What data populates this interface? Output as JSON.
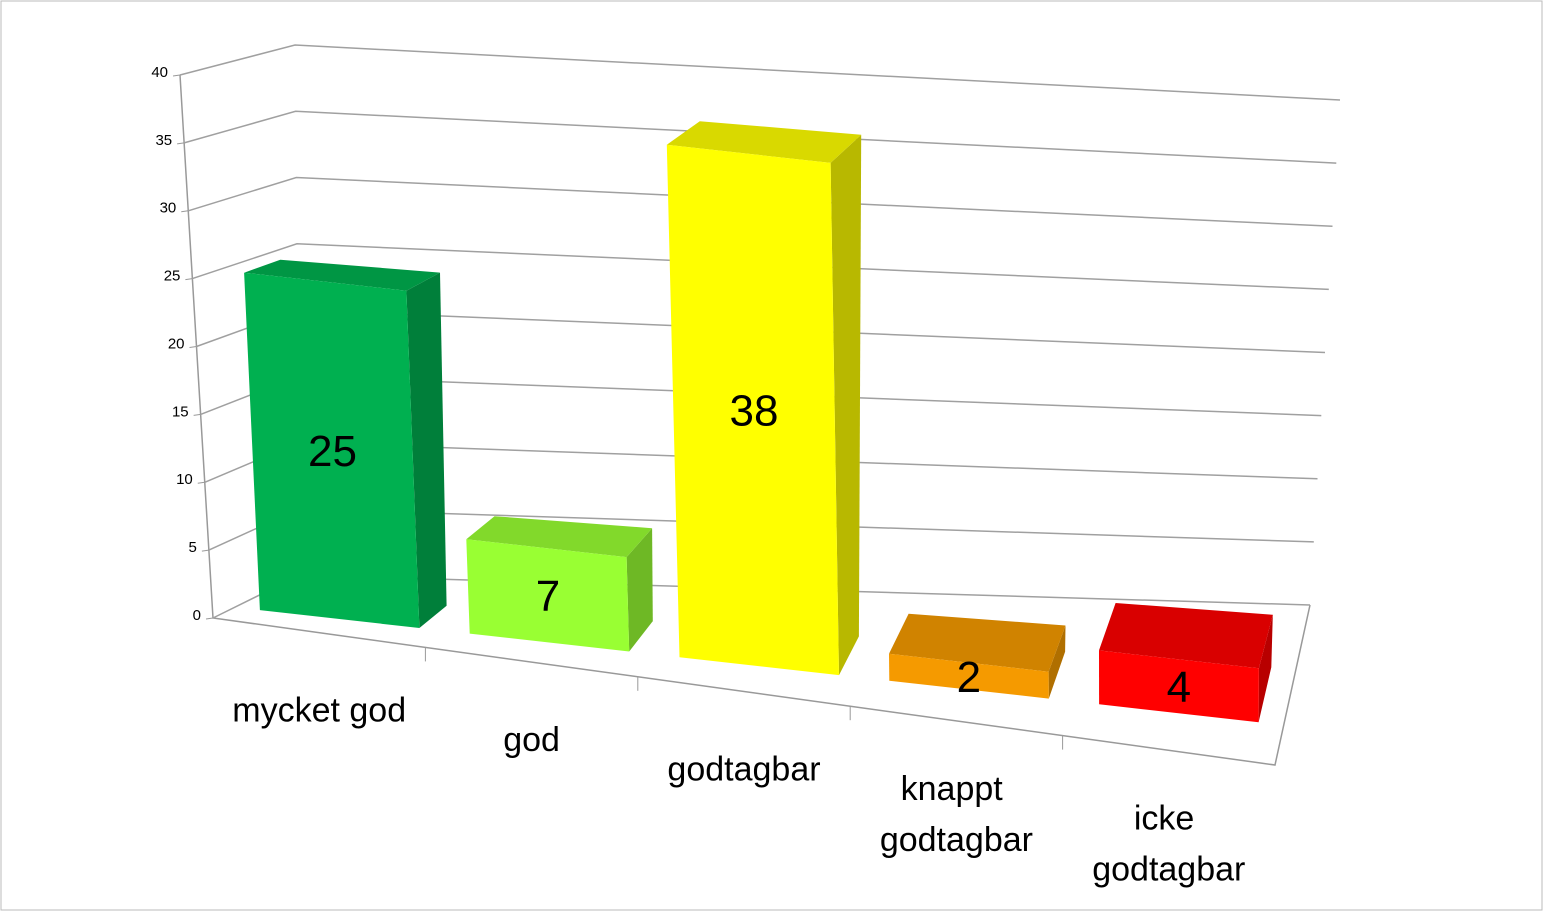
{
  "chart_data": {
    "type": "bar3d",
    "categories": [
      "mycket god",
      "god",
      "godtagbar",
      "knappt godtagbar",
      "icke godtagbar"
    ],
    "values": [
      25,
      7,
      38,
      2,
      4
    ],
    "colors": [
      "#00b050",
      "#99ff33",
      "#ffff00",
      "#f59a00",
      "#ff0000"
    ],
    "ylim": [
      0,
      40
    ],
    "yticks": [
      0,
      5,
      10,
      15,
      20,
      25,
      30,
      35,
      40
    ],
    "grid": true
  }
}
